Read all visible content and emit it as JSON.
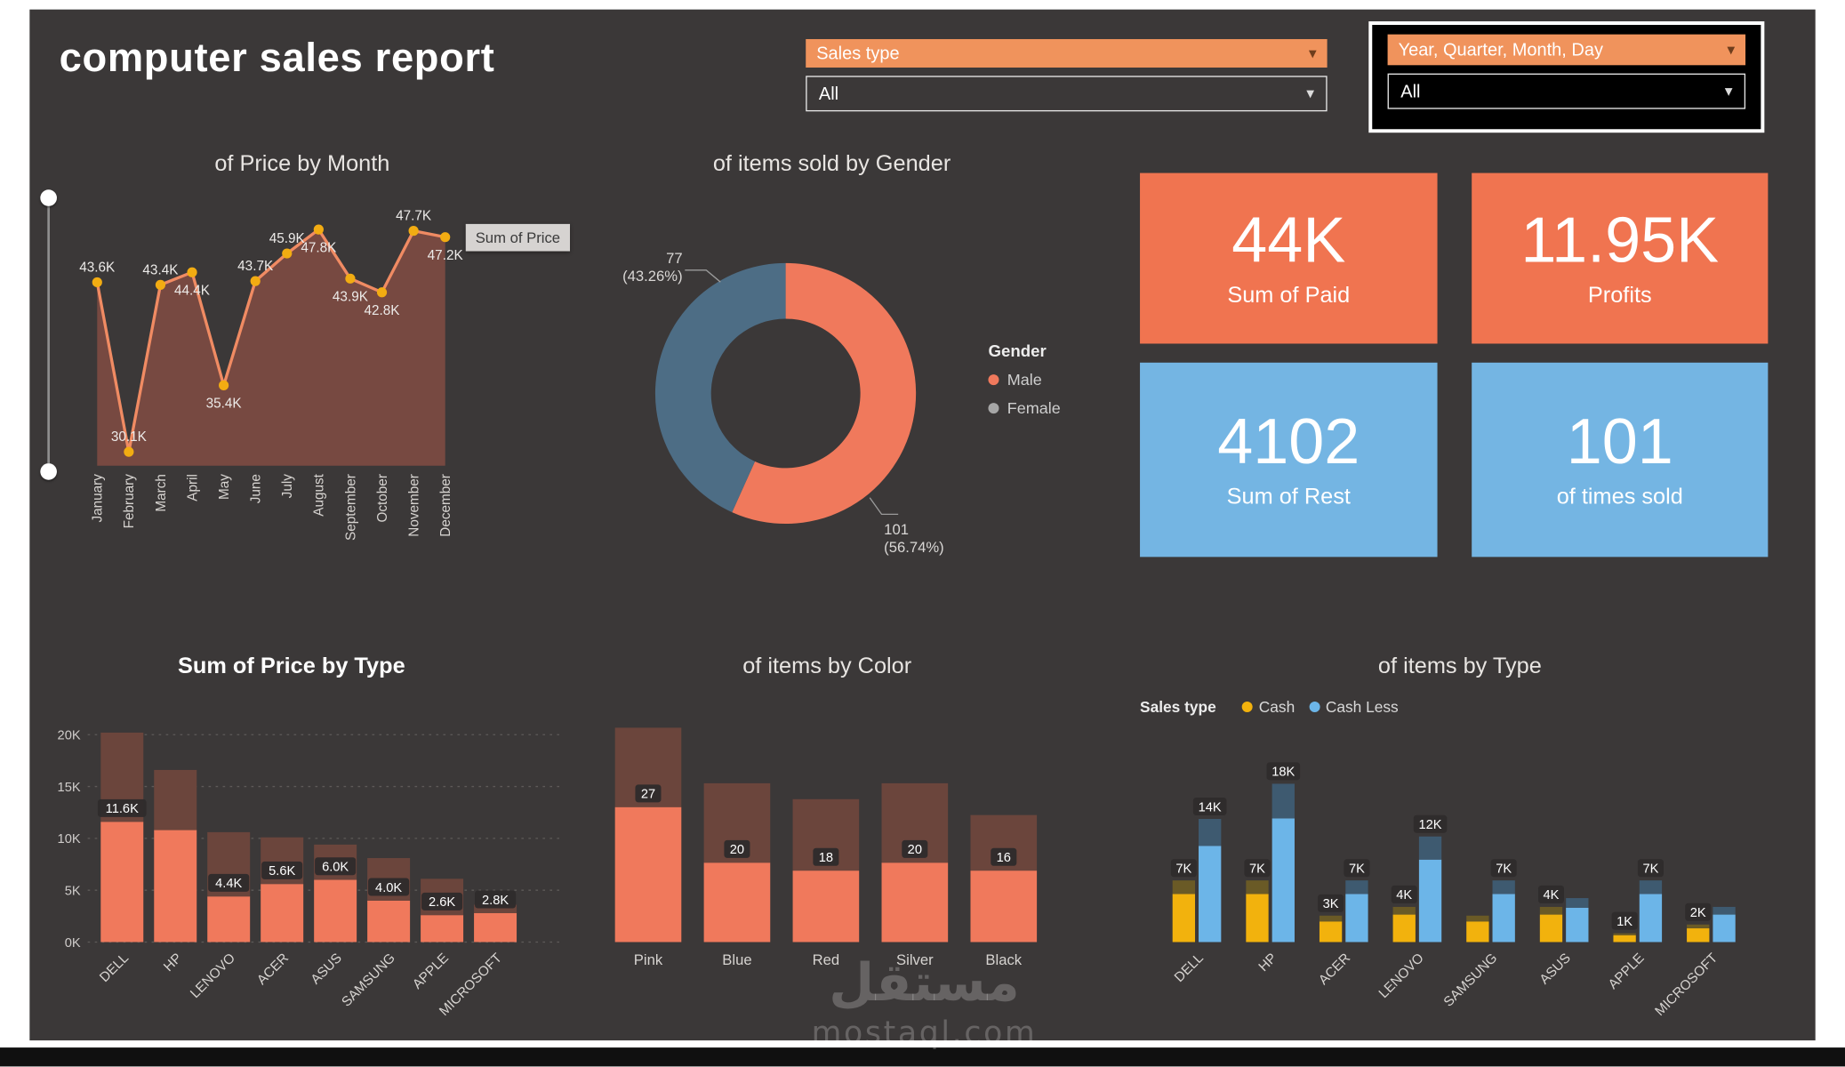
{
  "header": {
    "title": "computer sales report"
  },
  "slicers": [
    {
      "header": "Sales type",
      "value": "All"
    },
    {
      "header": "Year, Quarter, Month, Day",
      "value": "All"
    }
  ],
  "kpis": [
    {
      "value": "44K",
      "label": "Sum of Paid",
      "color": "#F07450"
    },
    {
      "value": "11.95K",
      "label": "Profits",
      "color": "#F07450"
    },
    {
      "value": "4102",
      "label": "Sum of Rest",
      "color": "#74B5E3"
    },
    {
      "value": "101",
      "label": "of times sold",
      "color": "#74B5E3"
    }
  ],
  "colors": {
    "background": "#3B3838",
    "orange": "#F0795C",
    "brown": "#6B453C",
    "area_fill": "#7A4A41",
    "line": "#F08B63",
    "point": "#F2AC12",
    "yellow": "#F2B20D",
    "light_blue": "#6CB5E8",
    "steel": "#4D6D85",
    "cap_olive": "#6A5A26",
    "cap_slate": "#3E5A70",
    "slicer_orange": "#F0935C",
    "legend_gray": "#A6A6A6"
  },
  "watermark": {
    "line1": "مستقل",
    "line2": "mostaql.com"
  },
  "chart_data": [
    {
      "id": "price-by-month",
      "type": "line",
      "title": "of Price by Month",
      "series_name": "Sum of Price",
      "categories": [
        "January",
        "February",
        "March",
        "April",
        "May",
        "June",
        "July",
        "August",
        "September",
        "October",
        "November",
        "December"
      ],
      "values": [
        43.6,
        30.1,
        43.4,
        44.4,
        35.4,
        43.7,
        45.9,
        47.8,
        43.9,
        42.8,
        47.7,
        47.2
      ],
      "labels": [
        "43.6K",
        "30.1K",
        "43.4K",
        "44.4K",
        "35.4K",
        "43.7K",
        "45.9K",
        "47.8K",
        "43.9K",
        "42.8K",
        "47.7K",
        "47.2K"
      ],
      "label_pos": [
        "above",
        "above",
        "above",
        "below",
        "below",
        "above",
        "above",
        "below",
        "below",
        "below",
        "above",
        "below"
      ],
      "unit": "K",
      "ylim": [
        29,
        50
      ]
    },
    {
      "id": "items-by-gender",
      "type": "pie",
      "title": "of items sold by Gender",
      "legend_title": "Gender",
      "slices": [
        {
          "label": "Male",
          "value": 101,
          "pct": "(56.74%)",
          "color_key": "orange"
        },
        {
          "label": "Female",
          "value": 77,
          "pct": "(43.26%)",
          "color_key": "steel"
        }
      ]
    },
    {
      "id": "price-by-type",
      "type": "bar",
      "title": "Sum of Price by Type",
      "categories": [
        "DELL",
        "HP",
        "LENOVO",
        "ACER",
        "ASUS",
        "SAMSUNG",
        "APPLE",
        "MICROSOFT"
      ],
      "series": [
        {
          "name": "bottom_segment",
          "color_key": "orange",
          "values": [
            11.6,
            10.8,
            4.4,
            5.6,
            6.0,
            4.0,
            2.6,
            2.8
          ]
        },
        {
          "name": "top_segment",
          "color_key": "brown",
          "values": [
            8.6,
            5.8,
            6.2,
            4.5,
            3.4,
            4.1,
            3.5,
            0.8
          ]
        }
      ],
      "labels": [
        "11.6K",
        null,
        "4.4K",
        "5.6K",
        "6.0K",
        "4.0K",
        "2.6K",
        "2.8K"
      ],
      "yticks": [
        "0K",
        "5K",
        "10K",
        "15K",
        "20K"
      ],
      "ylim": [
        0,
        20
      ],
      "unit": "K"
    },
    {
      "id": "items-by-color",
      "type": "bar",
      "title": "of items by Color",
      "categories": [
        "Pink",
        "Blue",
        "Red",
        "Silver",
        "Black"
      ],
      "series": [
        {
          "name": "bottom_segment",
          "color_key": "orange",
          "values": [
            17,
            10,
            9,
            10,
            9
          ]
        },
        {
          "name": "top_segment",
          "color_key": "brown",
          "values": [
            10,
            10,
            9,
            10,
            7
          ]
        }
      ],
      "labels": [
        "27",
        "20",
        "18",
        "20",
        "16"
      ],
      "totals": [
        27,
        20,
        18,
        20,
        16
      ],
      "ylim": [
        0,
        28
      ]
    },
    {
      "id": "items-by-type",
      "type": "bar",
      "title": "of items by Type",
      "legend_title": "Sales type",
      "categories": [
        "DELL",
        "HP",
        "ACER",
        "LENOVO",
        "SAMSUNG",
        "ASUS",
        "APPLE",
        "MICROSOFT"
      ],
      "series": [
        {
          "name": "Cash",
          "color_key": "yellow",
          "cap_color_key": "cap_olive",
          "values": [
            7,
            7,
            3,
            4,
            3,
            4,
            1,
            2
          ],
          "labels": [
            "7K",
            "7K",
            "3K",
            "4K",
            null,
            "4K",
            "1K",
            "2K"
          ]
        },
        {
          "name": "Cash Less",
          "color_key": "light_blue",
          "cap_color_key": "cap_slate",
          "values": [
            14,
            18,
            7,
            12,
            7,
            5,
            7,
            4
          ],
          "labels": [
            "14K",
            "18K",
            "7K",
            "12K",
            "7K",
            null,
            "7K",
            null
          ]
        }
      ],
      "ylim": [
        0,
        24
      ],
      "unit": "K"
    }
  ]
}
